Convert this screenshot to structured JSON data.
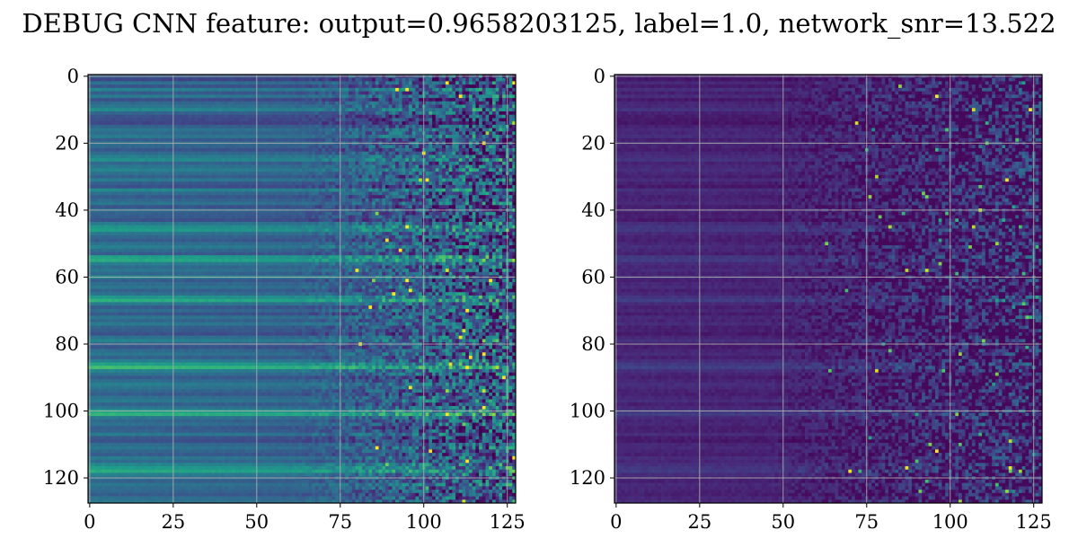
{
  "figure": {
    "title": "DEBUG CNN feature: output=0.9658203125, label=1.0, network_snr=13.522"
  },
  "chart_data": [
    {
      "type": "heatmap",
      "title": "",
      "xlabel": "",
      "ylabel": "",
      "rows": 128,
      "cols": 128,
      "xlim": [
        -0.5,
        127.5
      ],
      "ylim": [
        127.5,
        -0.5
      ],
      "y_inverted": true,
      "xticks": [
        0,
        25,
        50,
        75,
        100,
        125
      ],
      "yticks": [
        0,
        20,
        40,
        60,
        80,
        100,
        120
      ],
      "grid": true,
      "colormap": "viridis",
      "colormap_stops": [
        "#440154",
        "#482878",
        "#3e4989",
        "#31688e",
        "#26828e",
        "#1f9e89",
        "#35b779",
        "#6ece58",
        "#b5de2b",
        "#fde725"
      ],
      "description_of_values": "row-striped low-frequency band on left (cols 0-75) with noisy high-variance speckle on right (cols 75-127); bright rows near 46, 55, 67, 87, 101, 118",
      "row_base_levels": [
        0.3,
        0.22,
        0.38,
        0.28,
        0.45,
        0.3,
        0.42,
        0.25,
        0.35,
        0.4,
        0.48,
        0.33,
        0.26,
        0.24,
        0.22,
        0.32,
        0.4,
        0.36,
        0.42,
        0.3,
        0.38,
        0.34,
        0.28,
        0.36,
        0.44,
        0.5,
        0.34,
        0.4,
        0.46,
        0.38,
        0.32,
        0.42,
        0.3,
        0.26,
        0.48,
        0.36,
        0.3,
        0.34,
        0.4,
        0.28,
        0.36,
        0.32,
        0.3,
        0.26,
        0.42,
        0.52,
        0.56,
        0.4,
        0.34,
        0.3,
        0.38,
        0.44,
        0.36,
        0.3,
        0.58,
        0.62,
        0.44,
        0.36,
        0.4,
        0.34,
        0.48,
        0.3,
        0.36,
        0.4,
        0.32,
        0.38,
        0.54,
        0.64,
        0.42,
        0.3,
        0.36,
        0.28,
        0.4,
        0.34,
        0.42,
        0.32,
        0.3,
        0.26,
        0.38,
        0.46,
        0.32,
        0.28,
        0.36,
        0.4,
        0.32,
        0.44,
        0.58,
        0.7,
        0.46,
        0.38,
        0.3,
        0.36,
        0.44,
        0.4,
        0.34,
        0.3,
        0.38,
        0.42,
        0.32,
        0.4,
        0.58,
        0.66,
        0.4,
        0.34,
        0.38,
        0.3,
        0.32,
        0.42,
        0.28,
        0.26,
        0.36,
        0.4,
        0.34,
        0.3,
        0.42,
        0.36,
        0.48,
        0.56,
        0.62,
        0.44,
        0.38,
        0.32,
        0.4,
        0.36,
        0.34,
        0.3,
        0.38,
        0.4
      ]
    },
    {
      "type": "heatmap",
      "title": "",
      "xlabel": "",
      "ylabel": "",
      "rows": 128,
      "cols": 128,
      "xlim": [
        -0.5,
        127.5
      ],
      "ylim": [
        127.5,
        -0.5
      ],
      "y_inverted": true,
      "xticks": [
        0,
        25,
        50,
        75,
        100,
        125
      ],
      "yticks": [
        0,
        20,
        40,
        60,
        80,
        100,
        120
      ],
      "grid": true,
      "colormap": "viridis",
      "colormap_stops": [
        "#440154",
        "#482878",
        "#3e4989",
        "#31688e",
        "#26828e",
        "#1f9e89",
        "#35b779",
        "#6ece58",
        "#b5de2b",
        "#fde725"
      ],
      "description_of_values": "mostly dark purple (low values) with faint row stripes on left; speckled teal/green/yellow noise increasing toward right beyond col ~50",
      "row_base_levels": [
        0.1,
        0.06,
        0.12,
        0.08,
        0.14,
        0.09,
        0.13,
        0.07,
        0.11,
        0.12,
        0.15,
        0.1,
        0.08,
        0.07,
        0.06,
        0.09,
        0.12,
        0.11,
        0.13,
        0.09,
        0.12,
        0.1,
        0.08,
        0.11,
        0.13,
        0.15,
        0.1,
        0.12,
        0.14,
        0.11,
        0.09,
        0.13,
        0.09,
        0.07,
        0.14,
        0.11,
        0.09,
        0.1,
        0.12,
        0.08,
        0.11,
        0.09,
        0.09,
        0.07,
        0.13,
        0.16,
        0.17,
        0.12,
        0.1,
        0.09,
        0.11,
        0.13,
        0.11,
        0.09,
        0.17,
        0.18,
        0.13,
        0.11,
        0.12,
        0.1,
        0.14,
        0.09,
        0.11,
        0.12,
        0.09,
        0.11,
        0.16,
        0.19,
        0.12,
        0.09,
        0.11,
        0.08,
        0.12,
        0.1,
        0.13,
        0.09,
        0.09,
        0.07,
        0.11,
        0.14,
        0.09,
        0.08,
        0.11,
        0.12,
        0.09,
        0.13,
        0.17,
        0.2,
        0.14,
        0.11,
        0.09,
        0.11,
        0.13,
        0.12,
        0.1,
        0.09,
        0.11,
        0.13,
        0.09,
        0.12,
        0.17,
        0.19,
        0.12,
        0.1,
        0.11,
        0.09,
        0.09,
        0.13,
        0.08,
        0.07,
        0.11,
        0.12,
        0.1,
        0.09,
        0.13,
        0.11,
        0.14,
        0.16,
        0.18,
        0.13,
        0.11,
        0.09,
        0.12,
        0.11,
        0.1,
        0.09,
        0.11,
        0.12
      ]
    }
  ]
}
